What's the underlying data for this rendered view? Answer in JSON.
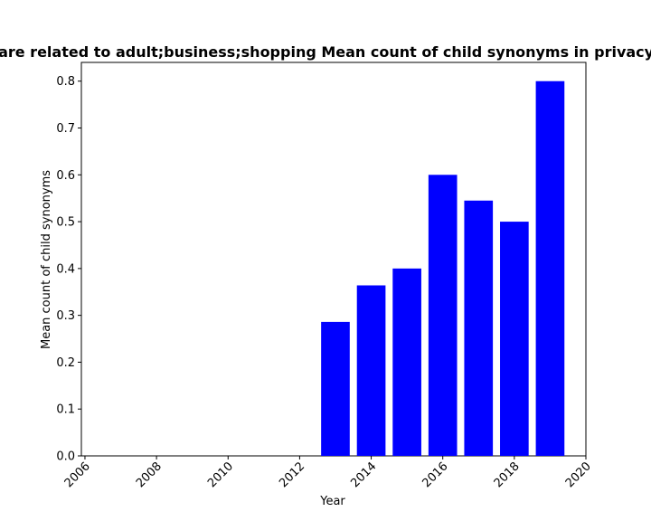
{
  "chart_data": {
    "type": "bar",
    "title": "Pages are related to adult;business;shopping Mean count of child synonyms in privacy policies",
    "xlabel": "Year",
    "ylabel": "Mean count of child synonyms",
    "x": [
      2013,
      2014,
      2015,
      2016,
      2017,
      2018,
      2019
    ],
    "values": [
      0.286,
      0.364,
      0.4,
      0.6,
      0.545,
      0.5,
      0.8
    ],
    "xlim": [
      2005.9,
      2020
    ],
    "ylim": [
      0,
      0.84
    ],
    "xticks": [
      2006,
      2008,
      2010,
      2012,
      2014,
      2016,
      2018,
      2020
    ],
    "yticks": [
      0.0,
      0.1,
      0.2,
      0.3,
      0.4,
      0.5,
      0.6,
      0.7,
      0.8
    ],
    "bar_color": "#0000ff",
    "grid": false
  }
}
